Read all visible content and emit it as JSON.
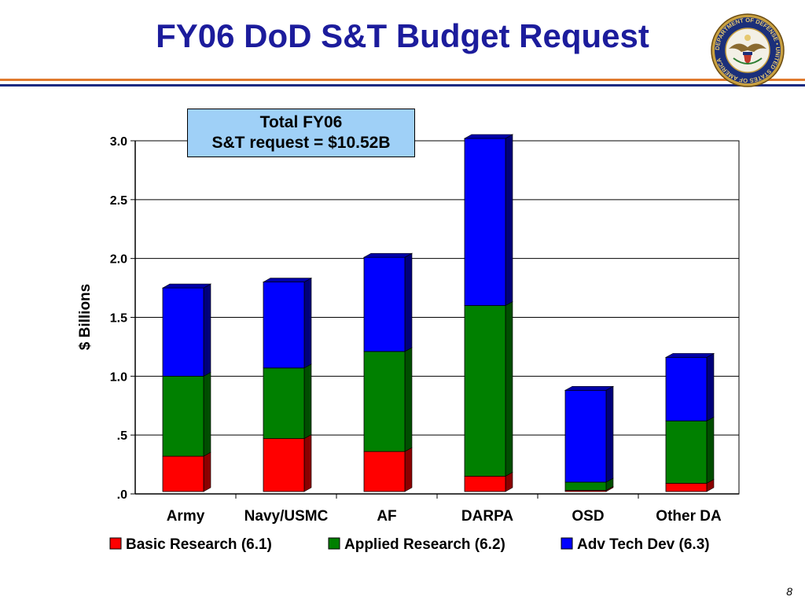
{
  "slide": {
    "title": "FY06 DoD S&T Budget Request",
    "page_number": "8",
    "callout_line1": "Total FY06",
    "callout_line2": "S&T request = $10.52B",
    "seal_icon": "department-of-defense-seal",
    "seal_text": "DEPARTMENT OF DEFENSE • UNITED STATES OF AMERICA"
  },
  "colors": {
    "title": "#1c1c9c",
    "basic": "#ff0000",
    "applied": "#008000",
    "advtech": "#0000ff",
    "callout_bg": "#9fd0f7",
    "rule_orange": "#e07a2e",
    "rule_blue": "#1a2a80"
  },
  "chart_data": {
    "type": "bar",
    "stacked": true,
    "categories": [
      "Army",
      "Navy/USMC",
      "AF",
      "DARPA",
      "OSD",
      "Other DA"
    ],
    "series": [
      {
        "name": "Basic Research (6.1)",
        "values": [
          0.3,
          0.45,
          0.34,
          0.13,
          0.01,
          0.07
        ]
      },
      {
        "name": "Applied Research (6.2)",
        "values": [
          0.68,
          0.6,
          0.85,
          1.45,
          0.07,
          0.53
        ]
      },
      {
        "name": "Adv Tech Dev (6.3)",
        "values": [
          0.75,
          0.73,
          0.8,
          1.42,
          0.78,
          0.54
        ]
      }
    ],
    "ylabel": "$ Billions",
    "xlabel": "",
    "ylim": [
      0,
      3.0
    ],
    "yticks": [
      ".0",
      ".5",
      "1.0",
      "1.5",
      "2.0",
      "2.5",
      "3.0"
    ],
    "grid": true,
    "legend_position": "bottom"
  }
}
